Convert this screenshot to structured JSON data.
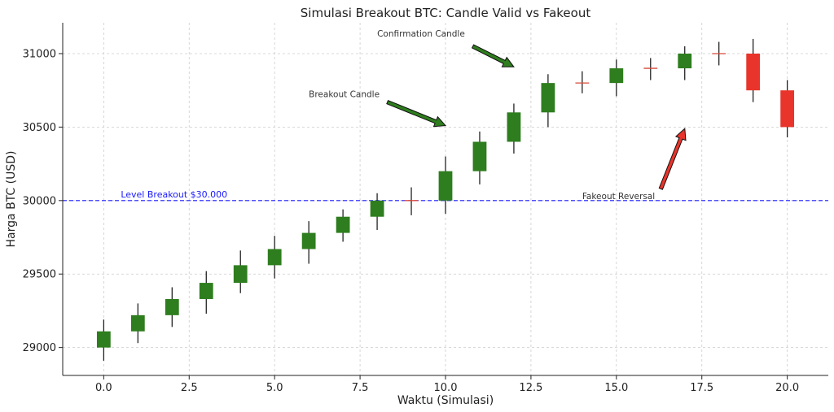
{
  "chart_data": {
    "type": "candlestick",
    "title": "Simulasi Breakout BTC: Candle Valid vs Fakeout",
    "xlabel": "Waktu (Simulasi)",
    "ylabel": "Harga BTC (USD)",
    "xlim": [
      -1.2,
      21.2
    ],
    "ylim": [
      28810,
      31210
    ],
    "xticks": [
      0,
      2.5,
      5,
      7.5,
      10,
      12.5,
      15,
      17.5,
      20
    ],
    "xtick_labels": [
      "0.0",
      "2.5",
      "5.0",
      "7.5",
      "10.0",
      "12.5",
      "15.0",
      "17.5",
      "20.0"
    ],
    "yticks": [
      29000,
      29500,
      30000,
      30500,
      31000
    ],
    "ytick_labels": [
      "29000",
      "29500",
      "30000",
      "30500",
      "31000"
    ],
    "grid": true,
    "candles": [
      {
        "t": 0,
        "open": 29000,
        "close": 29110,
        "high": 29190,
        "low": 28910
      },
      {
        "t": 1,
        "open": 29110,
        "close": 29220,
        "high": 29300,
        "low": 29030
      },
      {
        "t": 2,
        "open": 29220,
        "close": 29330,
        "high": 29410,
        "low": 29140
      },
      {
        "t": 3,
        "open": 29330,
        "close": 29440,
        "high": 29520,
        "low": 29230
      },
      {
        "t": 4,
        "open": 29440,
        "close": 29560,
        "high": 29660,
        "low": 29370
      },
      {
        "t": 5,
        "open": 29560,
        "close": 29670,
        "high": 29760,
        "low": 29470
      },
      {
        "t": 6,
        "open": 29670,
        "close": 29780,
        "high": 29860,
        "low": 29570
      },
      {
        "t": 7,
        "open": 29780,
        "close": 29890,
        "high": 29940,
        "low": 29720
      },
      {
        "t": 8,
        "open": 29890,
        "close": 30000,
        "high": 30050,
        "low": 29800
      },
      {
        "t": 9,
        "open": 30000,
        "close": 30000,
        "high": 30090,
        "low": 29900
      },
      {
        "t": 10,
        "open": 30000,
        "close": 30200,
        "high": 30300,
        "low": 29910
      },
      {
        "t": 11,
        "open": 30200,
        "close": 30400,
        "high": 30470,
        "low": 30110
      },
      {
        "t": 12,
        "open": 30400,
        "close": 30600,
        "high": 30660,
        "low": 30320
      },
      {
        "t": 13,
        "open": 30600,
        "close": 30800,
        "high": 30860,
        "low": 30500
      },
      {
        "t": 14,
        "open": 30800,
        "close": 30800,
        "high": 30880,
        "low": 30730
      },
      {
        "t": 15,
        "open": 30800,
        "close": 30900,
        "high": 30960,
        "low": 30710
      },
      {
        "t": 16,
        "open": 30900,
        "close": 30900,
        "high": 30970,
        "low": 30820
      },
      {
        "t": 17,
        "open": 30900,
        "close": 31000,
        "high": 31050,
        "low": 30820
      },
      {
        "t": 18,
        "open": 31000,
        "close": 31000,
        "high": 31080,
        "low": 30920
      },
      {
        "t": 19,
        "open": 31000,
        "close": 30750,
        "high": 31100,
        "low": 30670
      },
      {
        "t": 20,
        "open": 30750,
        "close": 30500,
        "high": 30820,
        "low": 30430
      }
    ],
    "colors": {
      "up": "#2e7d1e",
      "down": "#e8342a",
      "flat": "#d84a3a",
      "wick": "#111111",
      "level": "#1a1aff"
    },
    "level": {
      "value": 30000,
      "label": "Level Breakout $30.000"
    },
    "annotations": [
      {
        "id": "breakout",
        "text": "Breakout Candle",
        "text_x": 6,
        "text_y": 30705,
        "arrow_from": [
          8.3,
          30670
        ],
        "arrow_to": [
          10,
          30510
        ],
        "color": "#2e7d1e"
      },
      {
        "id": "confirmation",
        "text": "Confirmation Candle",
        "text_x": 8,
        "text_y": 31115,
        "arrow_from": [
          10.8,
          31050
        ],
        "arrow_to": [
          12,
          30910
        ],
        "color": "#2e7d1e"
      },
      {
        "id": "fakeout",
        "text": "Fakeout Reversal",
        "text_x": 14,
        "text_y": 30010,
        "arrow_from": [
          16.3,
          30080
        ],
        "arrow_to": [
          17,
          30490
        ],
        "color": "#e8342a"
      }
    ]
  }
}
